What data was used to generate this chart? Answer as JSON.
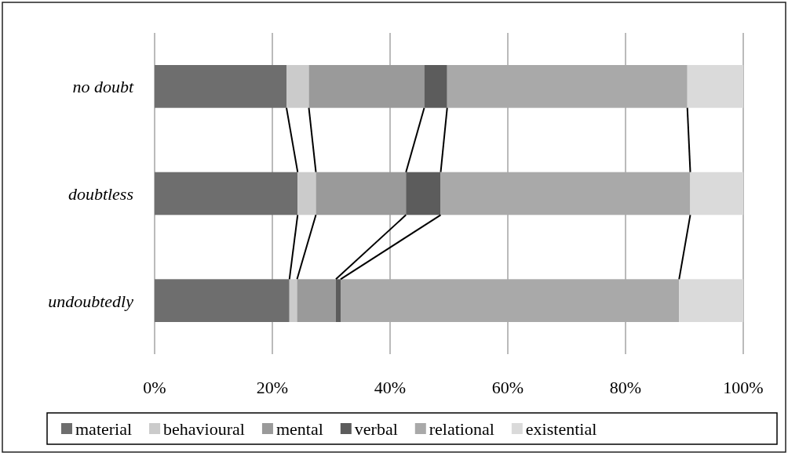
{
  "chart_data": {
    "type": "bar",
    "orientation": "horizontal",
    "stacked": true,
    "categories": [
      "no doubt",
      "doubtless",
      "undoubtedly"
    ],
    "series": [
      {
        "name": "material",
        "color": "#6e6e6e",
        "values": [
          22.4,
          24.3,
          22.9
        ]
      },
      {
        "name": "behavioural",
        "color": "#cbcbcb",
        "values": [
          3.8,
          3.1,
          1.3
        ]
      },
      {
        "name": "mental",
        "color": "#9a9a9a",
        "values": [
          19.6,
          15.3,
          6.6
        ]
      },
      {
        "name": "verbal",
        "color": "#5c5c5c",
        "values": [
          3.9,
          5.9,
          0.8
        ]
      },
      {
        "name": "relational",
        "color": "#a9a9a9",
        "values": [
          40.8,
          42.4,
          57.5
        ]
      },
      {
        "name": "existential",
        "color": "#dadada",
        "values": [
          9.5,
          9.0,
          10.9
        ]
      }
    ],
    "xlim": [
      0,
      100
    ],
    "xticks": [
      {
        "value": 0,
        "label": "0%"
      },
      {
        "value": 20,
        "label": "20%"
      },
      {
        "value": 40,
        "label": "40%"
      },
      {
        "value": 60,
        "label": "60%"
      },
      {
        "value": 80,
        "label": "80%"
      },
      {
        "value": 100,
        "label": "100%"
      }
    ],
    "grid": "x",
    "legend": "bottom"
  }
}
